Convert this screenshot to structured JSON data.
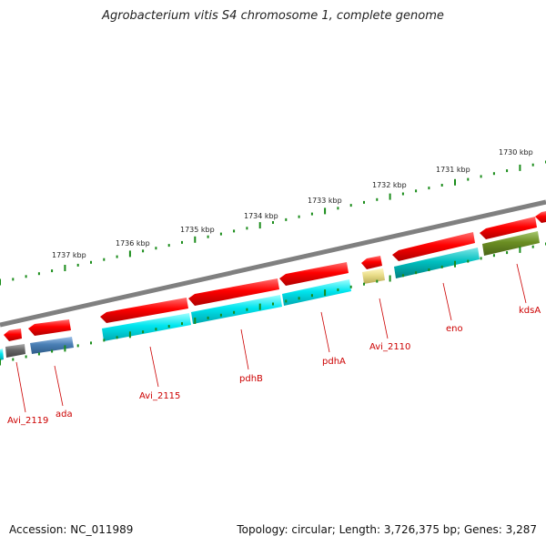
{
  "title": "Agrobacterium vitis S4 chromosome 1, complete genome",
  "footer": {
    "accession": "Accession: NC_011989",
    "summary": "Topology: circular; Length: 3,726,375 bp; Genes: 3,287"
  },
  "ticks": [
    {
      "label": "1737 kbp",
      "kbp": 1737
    },
    {
      "label": "1736 kbp",
      "kbp": 1736
    },
    {
      "label": "1735 kbp",
      "kbp": 1735
    },
    {
      "label": "1734 kbp",
      "kbp": 1734
    },
    {
      "label": "1733 kbp",
      "kbp": 1733
    },
    {
      "label": "1732 kbp",
      "kbp": 1732
    },
    {
      "label": "1731 kbp",
      "kbp": 1731
    },
    {
      "label": "1730 kbp",
      "kbp": 1730
    }
  ],
  "genes": [
    {
      "name": "Avi_2119",
      "label_color": "#cc0000",
      "feature_color": "#666666"
    },
    {
      "name": "ada",
      "label_color": "#cc0000",
      "feature_color": "#4a7fb5"
    },
    {
      "name": "Avi_2115",
      "label_color": "#cc0000",
      "feature_color": "#00e5ee"
    },
    {
      "name": "pdhB",
      "label_color": "#cc0000",
      "feature_color": "#00e5ee"
    },
    {
      "name": "pdhA",
      "label_color": "#cc0000",
      "feature_color": "#00e5ee"
    },
    {
      "name": "Avi_2110",
      "label_color": "#cc0000",
      "feature_color": "#e8dc88"
    },
    {
      "name": "eno",
      "label_color": "#cc0000",
      "feature_color": "#00c0c0"
    },
    {
      "name": "kdsA",
      "label_color": "#cc0000",
      "feature_color": "#6b8e23"
    }
  ],
  "colors": {
    "cds_strand": "#ff0000",
    "backbone": "#808080",
    "tick_marks": "#1a8c1a",
    "labels": "#cc0000"
  }
}
